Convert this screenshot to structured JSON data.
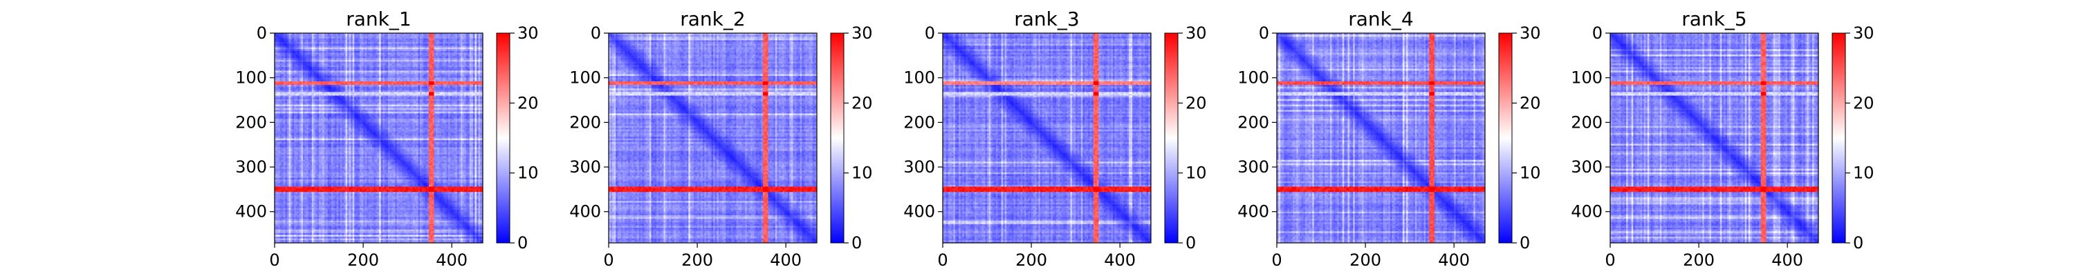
{
  "chart_data": [
    {
      "type": "heatmap",
      "title": "rank_1",
      "x_ticks": [
        0,
        200,
        400
      ],
      "y_ticks": [
        0,
        100,
        200,
        300,
        400
      ],
      "size": 470,
      "colorbar": {
        "ticks": [
          0,
          10,
          20,
          30
        ],
        "min": 0,
        "max": 30,
        "colormap": "bwr"
      },
      "band_rows": [
        [
          110,
          116,
          26
        ],
        [
          135,
          140,
          14
        ],
        [
          345,
          356,
          30
        ]
      ],
      "band_cols": [
        [
          348,
          358,
          26
        ]
      ],
      "grid": false
    },
    {
      "type": "heatmap",
      "title": "rank_2",
      "x_ticks": [
        0,
        200,
        400
      ],
      "y_ticks": [
        0,
        100,
        200,
        300,
        400
      ],
      "size": 470,
      "colorbar": {
        "ticks": [
          0,
          10,
          20,
          30
        ],
        "min": 0,
        "max": 30,
        "colormap": "bwr"
      },
      "band_rows": [
        [
          110,
          116,
          26
        ],
        [
          135,
          140,
          14
        ],
        [
          345,
          356,
          30
        ]
      ],
      "band_cols": [
        [
          348,
          358,
          26
        ]
      ],
      "grid": false
    },
    {
      "type": "heatmap",
      "title": "rank_3",
      "x_ticks": [
        0,
        200,
        400
      ],
      "y_ticks": [
        0,
        100,
        200,
        300,
        400
      ],
      "size": 470,
      "colorbar": {
        "ticks": [
          0,
          10,
          20,
          30
        ],
        "min": 0,
        "max": 30,
        "colormap": "bwr"
      },
      "band_rows": [
        [
          110,
          116,
          24
        ],
        [
          135,
          140,
          14
        ],
        [
          345,
          356,
          30
        ]
      ],
      "band_cols": [
        [
          340,
          350,
          26
        ]
      ],
      "grid": false
    },
    {
      "type": "heatmap",
      "title": "rank_4",
      "x_ticks": [
        0,
        200,
        400
      ],
      "y_ticks": [
        0,
        100,
        200,
        300,
        400
      ],
      "size": 470,
      "colorbar": {
        "ticks": [
          0,
          10,
          20,
          30
        ],
        "min": 0,
        "max": 30,
        "colormap": "bwr"
      },
      "band_rows": [
        [
          110,
          116,
          27
        ],
        [
          135,
          140,
          14
        ],
        [
          345,
          356,
          30
        ]
      ],
      "band_cols": [
        [
          345,
          355,
          27
        ]
      ],
      "grid": false
    },
    {
      "type": "heatmap",
      "title": "rank_5",
      "x_ticks": [
        0,
        200,
        400
      ],
      "y_ticks": [
        0,
        100,
        200,
        300,
        400
      ],
      "size": 470,
      "colorbar": {
        "ticks": [
          0,
          10,
          20,
          30
        ],
        "min": 0,
        "max": 30,
        "colormap": "bwr"
      },
      "band_rows": [
        [
          110,
          116,
          26
        ],
        [
          135,
          140,
          14
        ],
        [
          345,
          356,
          30
        ]
      ],
      "band_cols": [
        [
          340,
          350,
          26
        ]
      ],
      "grid": false
    }
  ]
}
